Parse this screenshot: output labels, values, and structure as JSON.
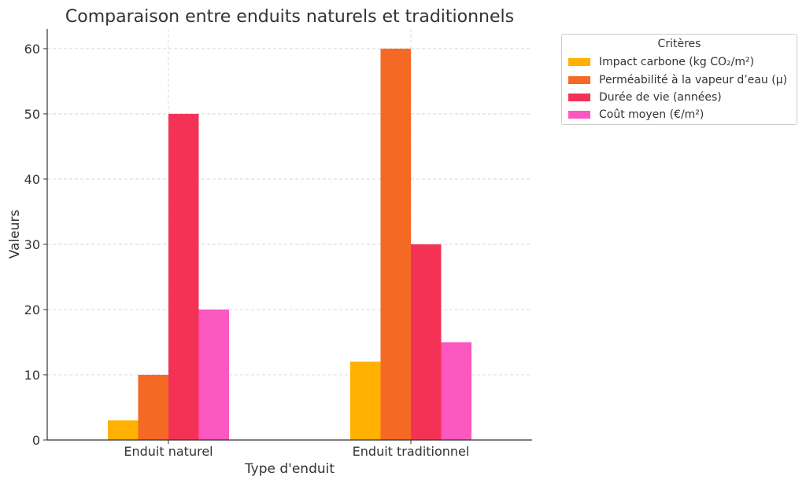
{
  "chart_data": {
    "type": "bar",
    "title": "Comparaison entre enduits naturels et traditionnels",
    "xlabel": "Type d'enduit",
    "ylabel": "Valeurs",
    "categories": [
      "Enduit naturel",
      "Enduit traditionnel"
    ],
    "series": [
      {
        "name": "Impact carbone (kg CO₂/m²)",
        "values": [
          3,
          12
        ],
        "color": "#FFB000"
      },
      {
        "name": "Perméabilité à la vapeur d’eau (µ)",
        "values": [
          10,
          60
        ],
        "color": "#F46A25"
      },
      {
        "name": "Durée de vie (années)",
        "values": [
          50,
          30
        ],
        "color": "#F43256"
      },
      {
        "name": "Coût moyen (€/m²)",
        "values": [
          20,
          15
        ],
        "color": "#FB58C0"
      }
    ],
    "ylim": [
      0,
      63
    ],
    "yticks": [
      0,
      10,
      20,
      30,
      40,
      50,
      60
    ],
    "grid": true,
    "legend": {
      "title": "Critères",
      "placement": "outside-top-right"
    }
  }
}
